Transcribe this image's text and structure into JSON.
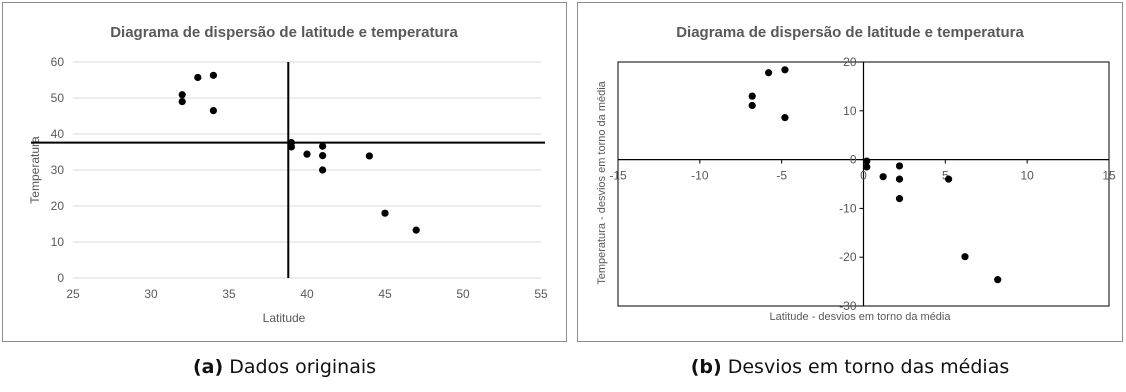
{
  "captions": [
    {
      "label": "(a)",
      "text": "Dados originais"
    },
    {
      "label": "(b)",
      "text": "Desvios em torno das médias"
    }
  ],
  "colors": {
    "point": "#000000",
    "text": "#595959",
    "title": "#595959",
    "grid": "#d9d9d9",
    "axis": "#000000"
  },
  "chart_data": [
    {
      "type": "scatter",
      "title": "Diagrama de dispersão de latitude e temperatura",
      "xlabel": "Latitude",
      "ylabel": "Temperatura",
      "xlim": [
        25,
        55
      ],
      "ylim": [
        0,
        60
      ],
      "xticks": [
        25,
        30,
        35,
        40,
        45,
        50,
        55
      ],
      "yticks": [
        0,
        10,
        20,
        30,
        40,
        50,
        60
      ],
      "grid": true,
      "reference_lines": {
        "x": 38.8,
        "y": 37.6
      },
      "points": [
        {
          "x": 32,
          "y": 50.9
        },
        {
          "x": 32,
          "y": 49
        },
        {
          "x": 33,
          "y": 55.7
        },
        {
          "x": 34,
          "y": 56.3
        },
        {
          "x": 34,
          "y": 46.5
        },
        {
          "x": 39,
          "y": 37.6
        },
        {
          "x": 39,
          "y": 36.4
        },
        {
          "x": 40,
          "y": 34.4
        },
        {
          "x": 41,
          "y": 36.6
        },
        {
          "x": 41,
          "y": 34
        },
        {
          "x": 41,
          "y": 30
        },
        {
          "x": 44,
          "y": 33.9
        },
        {
          "x": 45,
          "y": 18
        },
        {
          "x": 47,
          "y": 13.3
        }
      ]
    },
    {
      "type": "scatter",
      "title": "Diagrama de dispersão de latitude e temperatura",
      "xlabel": "Latitude - desvios em torno da média",
      "ylabel": "Temperatura - desvios em torno da média",
      "xlim": [
        -15,
        15
      ],
      "ylim": [
        -30,
        20
      ],
      "xticks": [
        -15,
        -10,
        -5,
        0,
        5,
        10,
        15
      ],
      "yticks": [
        -30,
        -20,
        -10,
        0,
        10,
        20
      ],
      "grid": false,
      "points": [
        {
          "x": -6.8,
          "y": 13
        },
        {
          "x": -6.8,
          "y": 11.1
        },
        {
          "x": -5.8,
          "y": 17.8
        },
        {
          "x": -4.8,
          "y": 18.4
        },
        {
          "x": -4.8,
          "y": 8.6
        },
        {
          "x": 0.2,
          "y": -0.3
        },
        {
          "x": 0.2,
          "y": -1.5
        },
        {
          "x": 1.2,
          "y": -3.5
        },
        {
          "x": 2.2,
          "y": -1.3
        },
        {
          "x": 2.2,
          "y": -4
        },
        {
          "x": 2.2,
          "y": -8
        },
        {
          "x": 5.2,
          "y": -4
        },
        {
          "x": 6.2,
          "y": -19.9
        },
        {
          "x": 8.2,
          "y": -24.6
        }
      ]
    }
  ]
}
